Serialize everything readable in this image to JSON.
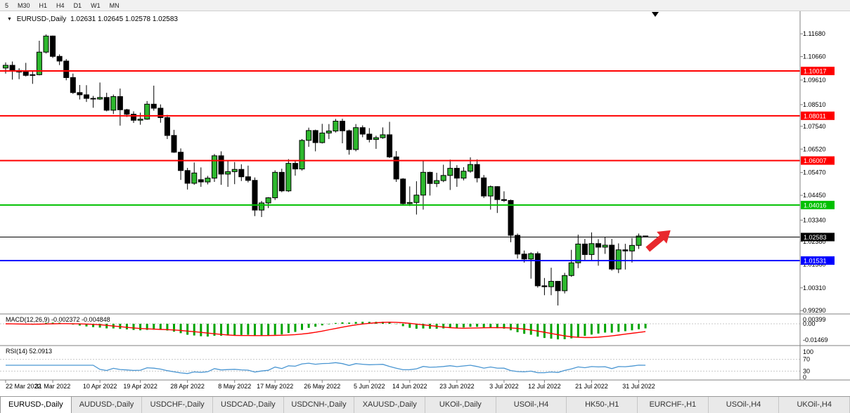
{
  "toolbar": {
    "timeframes": [
      "5",
      "M30",
      "H1",
      "H4",
      "D1",
      "W1",
      "MN"
    ]
  },
  "chart": {
    "symbol": "EURUSD-,Daily",
    "quote": "1.02631 1.02645 1.02578 1.02583",
    "price_axis_labels": [
      "1.11680",
      "1.10660",
      "1.09610",
      "1.08510",
      "1.07540",
      "1.06520",
      "1.05470",
      "1.04450",
      "1.03340",
      "1.02380",
      "1.01360",
      "1.00310",
      "0.99290"
    ],
    "hlines": [
      {
        "price": 1.10017,
        "label": "1.10017",
        "color": "#ff0000",
        "width": 2
      },
      {
        "price": 1.08011,
        "label": "1.08011",
        "color": "#ff0000",
        "width": 2
      },
      {
        "price": 1.06007,
        "label": "1.06007",
        "color": "#ff0000",
        "width": 2
      },
      {
        "price": 1.04016,
        "label": "1.04016",
        "color": "#00c000",
        "width": 2
      },
      {
        "price": 1.02583,
        "label": "1.02583",
        "color": "#000000",
        "width": 1
      },
      {
        "price": 1.01531,
        "label": "1.01531",
        "color": "#0000ff",
        "width": 2
      }
    ]
  },
  "chart_data": {
    "type": "candlestick",
    "symbol": "EURUSD",
    "timeframe": "Daily",
    "y_axis": {
      "min": 0.9914,
      "max": 1.1269
    },
    "x_axis_labels": [
      {
        "label": "22 Mar 2022",
        "index": 0
      },
      {
        "label": "31 Mar 2022",
        "index": 7
      },
      {
        "label": "10 Apr 2022",
        "index": 14
      },
      {
        "label": "19 Apr 2022",
        "index": 20
      },
      {
        "label": "28 Apr 2022",
        "index": 27
      },
      {
        "label": "8 May 2022",
        "index": 34
      },
      {
        "label": "17 May 2022",
        "index": 40
      },
      {
        "label": "26 May 2022",
        "index": 47
      },
      {
        "label": "5 Jun 2022",
        "index": 54
      },
      {
        "label": "14 Jun 2022",
        "index": 60
      },
      {
        "label": "23 Jun 2022",
        "index": 67
      },
      {
        "label": "3 Jul 2022",
        "index": 74
      },
      {
        "label": "12 Jul 2022",
        "index": 80
      },
      {
        "label": "21 Jul 2022",
        "index": 87
      },
      {
        "label": "31 Jul 2022",
        "index": 94
      }
    ],
    "candles": [
      [
        1.1015,
        1.104,
        1.099,
        1.1027
      ],
      [
        1.1027,
        1.1044,
        1.0963,
        1.1004
      ],
      [
        1.1004,
        1.1014,
        1.0965,
        1.0997
      ],
      [
        1.0997,
        1.1038,
        1.0977,
        1.0982
      ],
      [
        1.0982,
        1.0999,
        1.0944,
        1.0985
      ],
      [
        1.0985,
        1.1137,
        1.0982,
        1.1086
      ],
      [
        1.1086,
        1.1165,
        1.108,
        1.1158
      ],
      [
        1.1158,
        1.116,
        1.106,
        1.1067
      ],
      [
        1.1067,
        1.1076,
        1.1028,
        1.1046
      ],
      [
        1.1046,
        1.1055,
        1.096,
        1.0972
      ],
      [
        1.0972,
        1.099,
        1.0899,
        1.0905
      ],
      [
        1.0905,
        1.0939,
        1.0874,
        1.0895
      ],
      [
        1.0895,
        1.0938,
        1.0863,
        1.0879
      ],
      [
        1.0879,
        1.089,
        1.0837,
        1.0876
      ],
      [
        1.0876,
        1.095,
        1.0872,
        1.0883
      ],
      [
        1.0883,
        1.0904,
        1.0821,
        1.0826
      ],
      [
        1.0826,
        1.0896,
        1.0809,
        1.0887
      ],
      [
        1.0887,
        1.0923,
        1.0757,
        1.0828
      ],
      [
        1.0828,
        1.0832,
        1.0796,
        1.0808
      ],
      [
        1.0808,
        1.0821,
        1.0769,
        1.0781
      ],
      [
        1.0781,
        1.0815,
        1.0761,
        1.0786
      ],
      [
        1.0786,
        1.0867,
        1.0783,
        1.0853
      ],
      [
        1.0853,
        1.0936,
        1.0824,
        1.0835
      ],
      [
        1.0835,
        1.0852,
        1.077,
        1.0793
      ],
      [
        1.0793,
        1.0805,
        1.0697,
        1.0713
      ],
      [
        1.0713,
        1.0738,
        1.0635,
        1.0638
      ],
      [
        1.0638,
        1.0655,
        1.0514,
        1.0556
      ],
      [
        1.0556,
        1.0568,
        1.0471,
        1.0499
      ],
      [
        1.0499,
        1.0592,
        1.0492,
        1.0545
      ],
      [
        1.0515,
        1.057,
        1.0483,
        1.0505
      ],
      [
        1.0505,
        1.0532,
        1.0494,
        1.0522
      ],
      [
        1.0522,
        1.063,
        1.0505,
        1.0622
      ],
      [
        1.0622,
        1.0642,
        1.0492,
        1.054
      ],
      [
        1.054,
        1.0599,
        1.0483,
        1.0551
      ],
      [
        1.0551,
        1.0594,
        1.0495,
        1.0561
      ],
      [
        1.0561,
        1.0584,
        1.0509,
        1.0528
      ],
      [
        1.0528,
        1.0578,
        1.0503,
        1.0512
      ],
      [
        1.0512,
        1.0525,
        1.0352,
        1.0379
      ],
      [
        1.0379,
        1.042,
        1.0348,
        1.0411
      ],
      [
        1.0411,
        1.0437,
        1.0388,
        1.0434
      ],
      [
        1.0434,
        1.0557,
        1.0424,
        1.0548
      ],
      [
        1.0548,
        1.0564,
        1.0459,
        1.0465
      ],
      [
        1.0465,
        1.0607,
        1.046,
        1.0588
      ],
      [
        1.0588,
        1.06,
        1.0533,
        1.0563
      ],
      [
        1.0563,
        1.0697,
        1.0556,
        1.0691
      ],
      [
        1.0691,
        1.0748,
        1.0662,
        1.0735
      ],
      [
        1.0735,
        1.0739,
        1.0642,
        1.0681
      ],
      [
        1.0681,
        1.0765,
        1.0677,
        1.0724
      ],
      [
        1.0724,
        1.0764,
        1.0697,
        1.0733
      ],
      [
        1.0733,
        1.0787,
        1.0726,
        1.0777
      ],
      [
        1.0777,
        1.0788,
        1.0678,
        1.0734
      ],
      [
        1.0734,
        1.0739,
        1.0627,
        1.065
      ],
      [
        1.065,
        1.0764,
        1.0642,
        1.0748
      ],
      [
        1.0748,
        1.0758,
        1.0705,
        1.0719
      ],
      [
        1.0719,
        1.0746,
        1.0682,
        1.0695
      ],
      [
        1.0695,
        1.0712,
        1.0653,
        1.0703
      ],
      [
        1.0703,
        1.0749,
        1.0698,
        1.0716
      ],
      [
        1.0716,
        1.0774,
        1.0612,
        1.0617
      ],
      [
        1.0617,
        1.0643,
        1.0505,
        1.0518
      ],
      [
        1.0518,
        1.0522,
        1.0399,
        1.0408
      ],
      [
        1.0408,
        1.0485,
        1.0397,
        1.0413
      ],
      [
        1.0413,
        1.0508,
        1.0359,
        1.0446
      ],
      [
        1.0446,
        1.0601,
        1.0381,
        1.0548
      ],
      [
        1.0548,
        1.0551,
        1.0444,
        1.0498
      ],
      [
        1.0498,
        1.0546,
        1.0482,
        1.0511
      ],
      [
        1.0511,
        1.0582,
        1.0504,
        1.0534
      ],
      [
        1.0534,
        1.0605,
        1.0469,
        1.0566
      ],
      [
        1.0566,
        1.058,
        1.0483,
        1.0522
      ],
      [
        1.0522,
        1.0571,
        1.0512,
        1.0553
      ],
      [
        1.0553,
        1.0615,
        1.0546,
        1.0583
      ],
      [
        1.0583,
        1.0606,
        1.0503,
        1.0523
      ],
      [
        1.0523,
        1.0536,
        1.0433,
        1.0442
      ],
      [
        1.0442,
        1.0489,
        1.0381,
        1.0484
      ],
      [
        1.0484,
        1.0486,
        1.0366,
        1.0426
      ],
      [
        1.0426,
        1.0463,
        1.0415,
        1.0422
      ],
      [
        1.0422,
        1.0426,
        1.0235,
        1.0266
      ],
      [
        1.0266,
        1.0274,
        1.0162,
        1.0182
      ],
      [
        1.0182,
        1.0198,
        1.0144,
        1.016
      ],
      [
        1.016,
        1.019,
        1.0072,
        1.0184
      ],
      [
        1.0184,
        1.0193,
        1.0032,
        1.004
      ],
      [
        1.004,
        1.0075,
        0.9998,
        1.0036
      ],
      [
        1.0036,
        1.0121,
        0.9998,
        1.006
      ],
      [
        1.006,
        1.0062,
        0.9952,
        1.0018
      ],
      [
        1.0018,
        1.0098,
        1.0006,
        1.0086
      ],
      [
        1.0086,
        1.0201,
        1.008,
        1.0143
      ],
      [
        1.0143,
        1.0269,
        1.0119,
        1.0227
      ],
      [
        1.0227,
        1.025,
        1.0155,
        1.018
      ],
      [
        1.018,
        1.0279,
        1.0152,
        1.0229
      ],
      [
        1.0229,
        1.0249,
        1.013,
        1.0213
      ],
      [
        1.0213,
        1.0258,
        1.0183,
        1.0222
      ],
      [
        1.0222,
        1.025,
        1.0108,
        1.0115
      ],
      [
        1.0115,
        1.023,
        1.0097,
        1.0201
      ],
      [
        1.0201,
        1.0228,
        1.0113,
        1.0196
      ],
      [
        1.0196,
        1.0254,
        1.0144,
        1.0221
      ],
      [
        1.0221,
        1.0274,
        1.0205,
        1.0263
      ],
      [
        1.02631,
        1.02645,
        1.02578,
        1.02583
      ]
    ]
  },
  "indicators": {
    "macd": {
      "label": "MACD(12,26,9) -0.002372 -0.004848",
      "params": [
        12,
        26,
        9
      ],
      "values": {
        "macd": -0.002372,
        "signal": -0.004848
      },
      "range": {
        "max": 0.009,
        "min": -0.02
      },
      "axis_labels": [
        {
          "label": "0.00399",
          "value": 0.00399
        },
        {
          "label": "0.00",
          "value": 0
        },
        {
          "label": "-0.01469",
          "value": -0.01469
        }
      ]
    },
    "rsi": {
      "label": "RSI(14) 52.0913",
      "period": 14,
      "value": 52.0913,
      "axis_labels": [
        {
          "label": "100",
          "value": 100
        },
        {
          "label": "70",
          "value": 70
        },
        {
          "label": "30",
          "value": 30
        },
        {
          "label": "0",
          "value": 0
        }
      ],
      "levels": [
        70,
        30
      ]
    }
  },
  "tabs": [
    {
      "label": "EURUSD-,Daily",
      "active": true
    },
    {
      "label": "AUDUSD-,Daily",
      "active": false
    },
    {
      "label": "USDCHF-,Daily",
      "active": false
    },
    {
      "label": "USDCAD-,Daily",
      "active": false
    },
    {
      "label": "USDCNH-,Daily",
      "active": false
    },
    {
      "label": "XAUUSD-,Daily",
      "active": false
    },
    {
      "label": "UKOil-,Daily",
      "active": false
    },
    {
      "label": "USOil-,H4",
      "active": false
    },
    {
      "label": "HK50-,H1",
      "active": false
    },
    {
      "label": "EURCHF-,H1",
      "active": false
    },
    {
      "label": "USOil-,H4",
      "active": false
    },
    {
      "label": "UKOil-,H4",
      "active": false
    }
  ],
  "colors": {
    "candle_up": "#2eb82e",
    "candle_down": "#000000",
    "candle_outline": "#000000",
    "macd_histogram": "#00a400",
    "macd_signal": "#ff0000",
    "rsi_line": "#4a96d2",
    "arrow": "#e8282d",
    "grid_dashed": "#c8c8c8",
    "separator": "#808080"
  }
}
